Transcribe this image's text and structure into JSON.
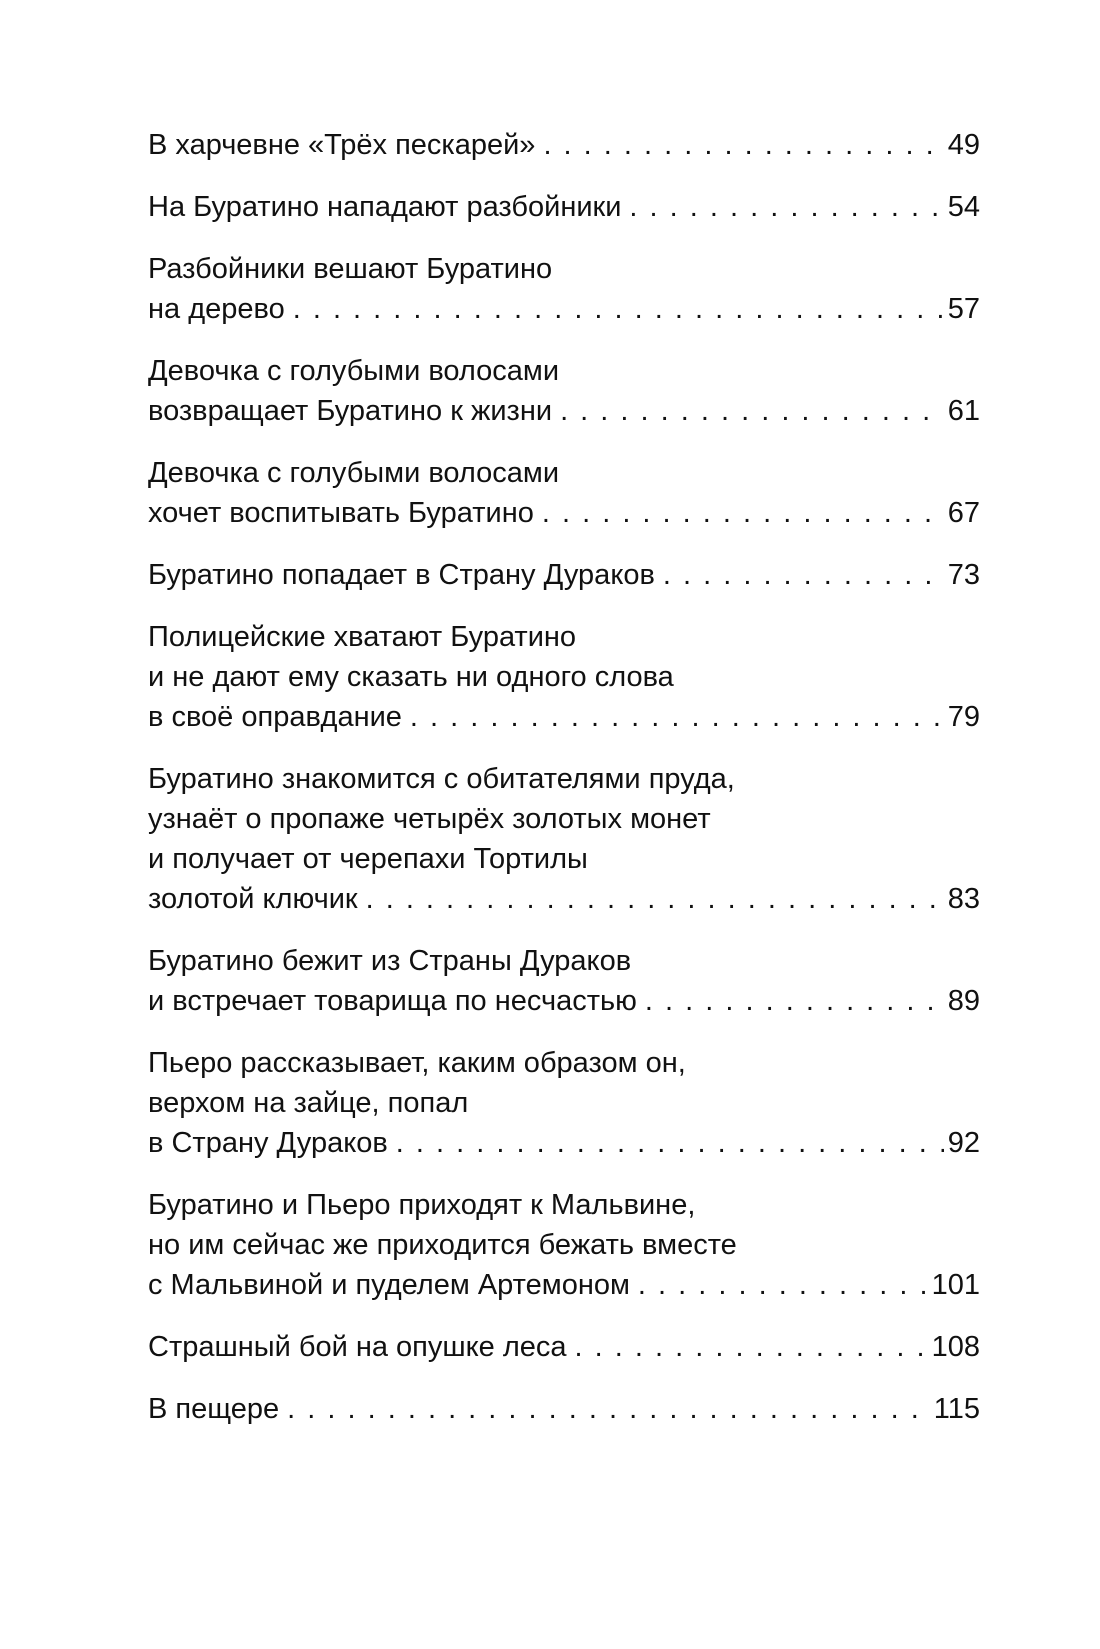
{
  "toc": {
    "entries": [
      {
        "lines": [
          "В харчевне «Трёх пескарей»"
        ],
        "page": "49"
      },
      {
        "lines": [
          "На Буратино нападают разбойники"
        ],
        "page": "54"
      },
      {
        "lines": [
          "Разбойники вешают Буратино",
          "на дерево"
        ],
        "page": "57"
      },
      {
        "lines": [
          "Девочка с голубыми волосами",
          "возвращает Буратино к жизни"
        ],
        "page": "61"
      },
      {
        "lines": [
          "Девочка с голубыми волосами",
          "хочет воспитывать Буратино"
        ],
        "page": "67"
      },
      {
        "lines": [
          "Буратино попадает в Страну Дураков"
        ],
        "page": "73"
      },
      {
        "lines": [
          "Полицейские хватают Буратино",
          "и не дают ему сказать ни одного слова",
          "в своё оправдание"
        ],
        "page": "79"
      },
      {
        "lines": [
          "Буратино знакомится с обитателями пруда,",
          "узнаёт о пропаже четырёх золотых монет",
          "и получает от черепахи Тортилы",
          "золотой ключик"
        ],
        "page": "83"
      },
      {
        "lines": [
          "Буратино бежит из Страны Дураков",
          "и встречает товарища по несчастью"
        ],
        "page": "89"
      },
      {
        "lines": [
          "Пьеро рассказывает, каким образом он,",
          "верхом на зайце, попал",
          "в Страну Дураков"
        ],
        "page": "92"
      },
      {
        "lines": [
          "Буратино и Пьеро приходят к Мальвине,",
          "но им сейчас же приходится бежать вместе",
          "с Мальвиной и пуделем Артемоном"
        ],
        "page": "101"
      },
      {
        "lines": [
          "Страшный бой на опушке леса"
        ],
        "page": "108"
      },
      {
        "lines": [
          "В пещере"
        ],
        "page": "115"
      }
    ]
  }
}
